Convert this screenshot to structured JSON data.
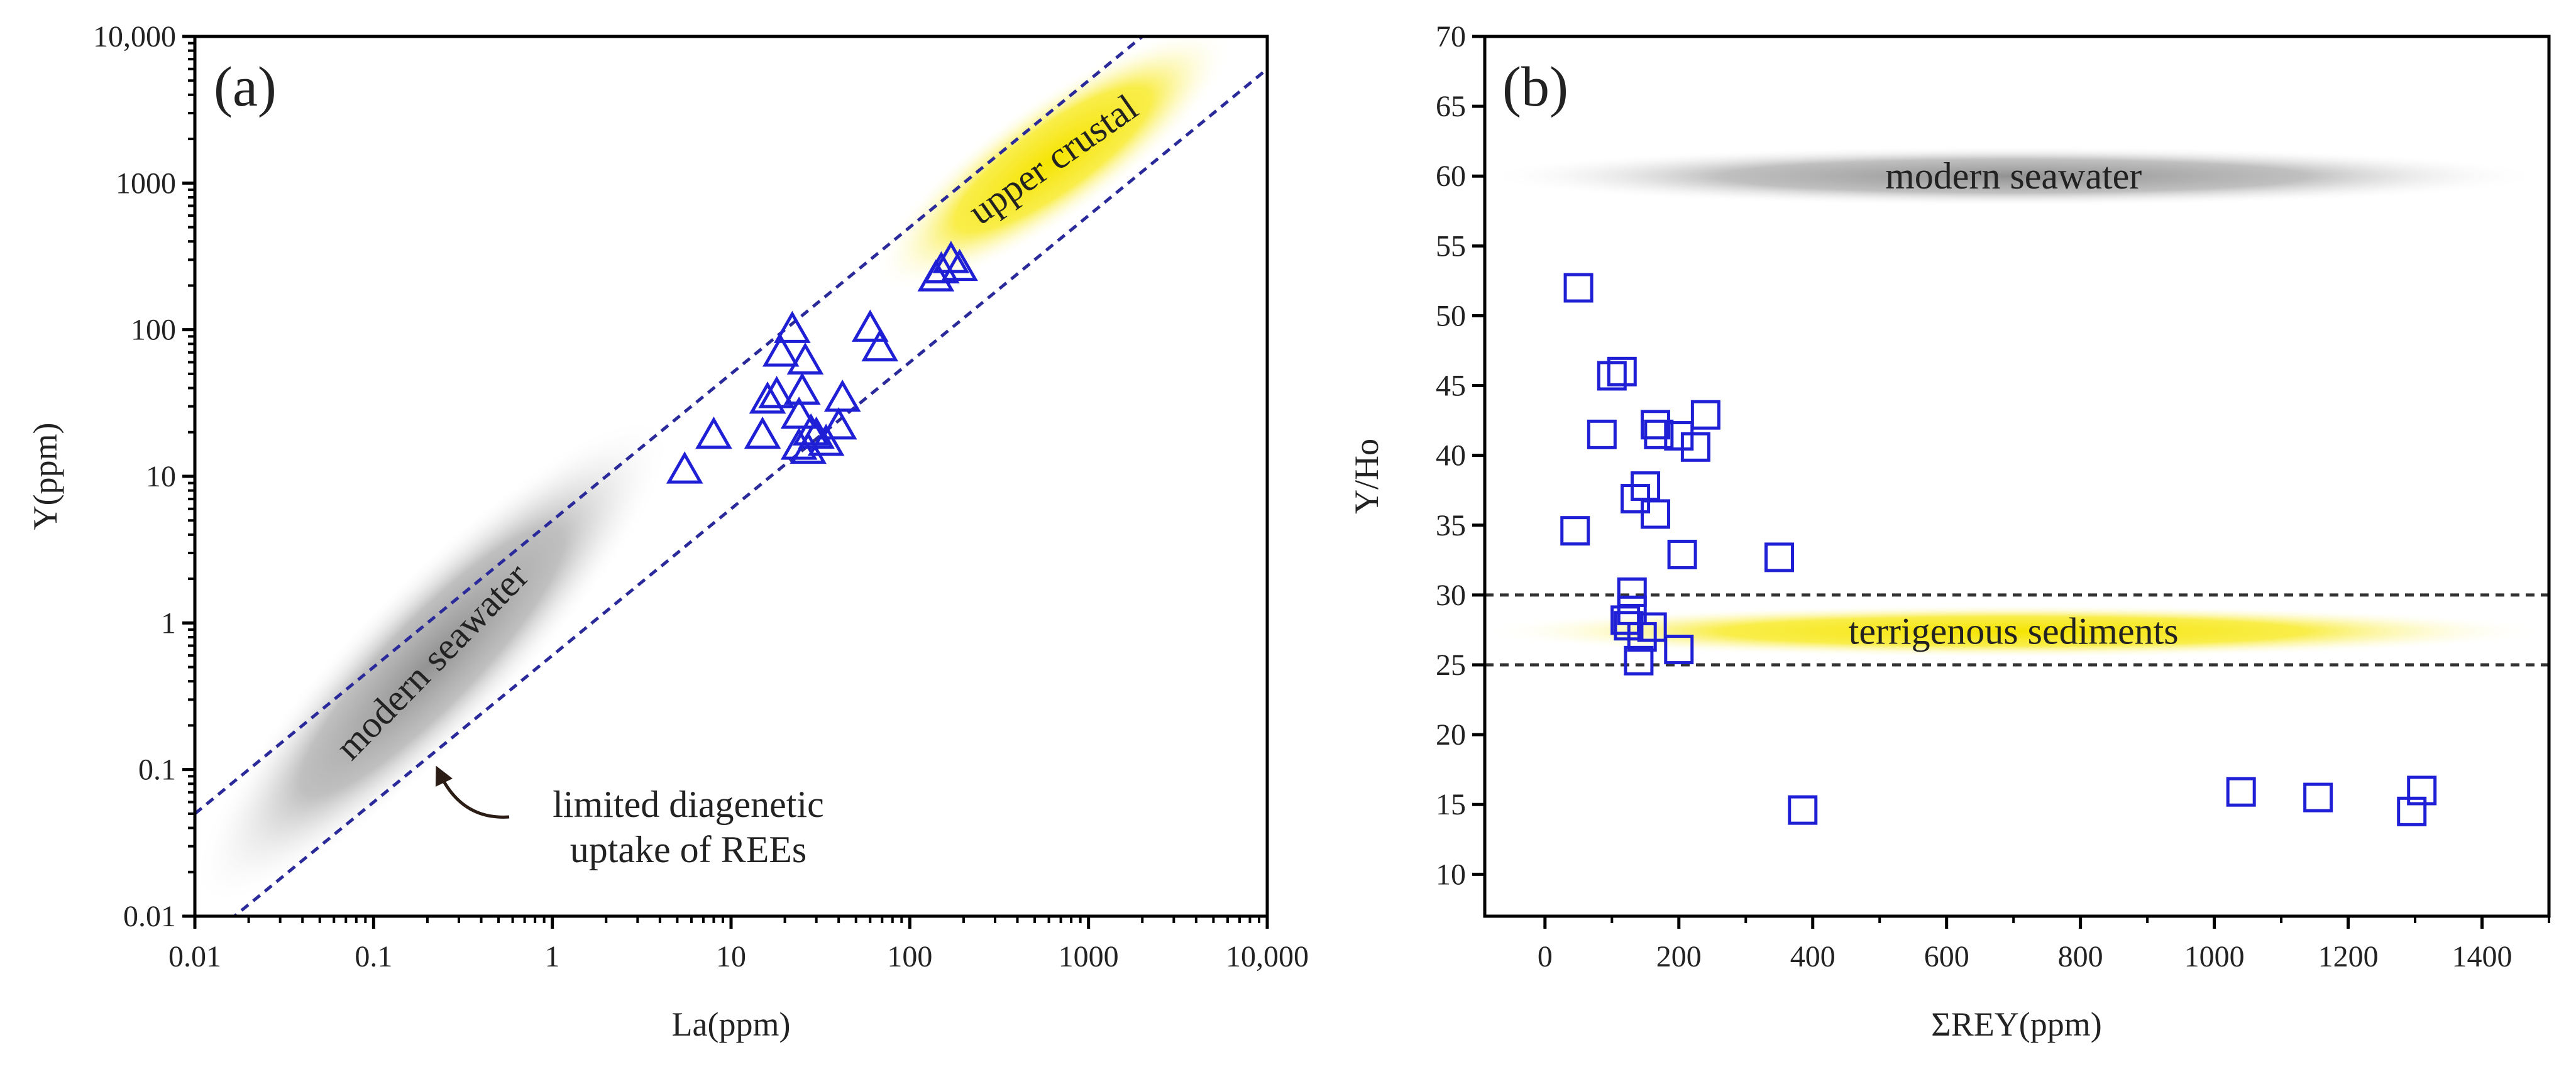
{
  "chart_data": [
    {
      "panel": "(a)",
      "type": "scatter",
      "xscale": "log",
      "yscale": "log",
      "xlabel": "La(ppm)",
      "ylabel": "Y(ppm)",
      "xlim": [
        0.01,
        10000
      ],
      "ylim": [
        0.01,
        10000
      ],
      "xticks": [
        0.01,
        0.1,
        1,
        10,
        100,
        1000,
        10000
      ],
      "xtick_labels": [
        "0.01",
        "0.1",
        "1",
        "10",
        "100",
        "1000",
        "10,000"
      ],
      "yticks": [
        0.01,
        0.1,
        1,
        10,
        100,
        1000,
        10000
      ],
      "ytick_labels": [
        "0.01",
        "0.1",
        "1",
        "10",
        "100",
        "1000",
        "10,000"
      ],
      "marker": "open-triangle",
      "marker_color": "#1f1fd6",
      "series": [
        {
          "name": "samples",
          "points": [
            [
              5.5,
              11
            ],
            [
              8,
              19
            ],
            [
              15,
              19
            ],
            [
              16,
              33
            ],
            [
              18,
              36
            ],
            [
              19,
              69
            ],
            [
              22,
              100
            ],
            [
              24,
              16
            ],
            [
              24,
              26
            ],
            [
              25,
              38
            ],
            [
              26,
              61
            ],
            [
              27,
              15
            ],
            [
              28,
              20
            ],
            [
              30,
              19
            ],
            [
              34,
              17
            ],
            [
              40,
              22
            ],
            [
              42,
              34
            ],
            [
              60,
              102
            ],
            [
              68,
              75
            ],
            [
              140,
              225
            ],
            [
              150,
              255
            ],
            [
              170,
              300
            ],
            [
              190,
              265
            ]
          ]
        }
      ],
      "reference_lines": [
        {
          "style": "dashed",
          "color": "#2a2a9a",
          "from": [
            0.01,
            0.05
          ],
          "to": [
            10000,
            50000
          ]
        },
        {
          "style": "dashed",
          "color": "#2a2a9a",
          "from": [
            0.01,
            0.006
          ],
          "to": [
            10000,
            6000
          ]
        }
      ],
      "regions": [
        {
          "label": "modern seawater",
          "color": "#9c9c9c",
          "from": [
            0.015,
            0.02
          ],
          "to": [
            3,
            15
          ]
        },
        {
          "label": "upper crustal",
          "color": "#f5e500",
          "from": [
            100,
            300
          ],
          "to": [
            4000,
            7000
          ]
        }
      ],
      "annotation": {
        "line1": "limited diagenetic",
        "line2": "uptake of REEs"
      }
    },
    {
      "panel": "(b)",
      "type": "scatter",
      "xlabel": "ΣREY(ppm)",
      "ylabel": "Y/Ho",
      "xlim": [
        -90,
        1500
      ],
      "ylim": [
        7,
        70
      ],
      "xticks": [
        0,
        200,
        400,
        600,
        800,
        1000,
        1200,
        1400
      ],
      "yticks": [
        10,
        15,
        20,
        25,
        30,
        35,
        40,
        45,
        50,
        55,
        60,
        65,
        70
      ],
      "marker": "open-square",
      "marker_color": "#1f1fd6",
      "series": [
        {
          "name": "samples",
          "points": [
            [
              50,
              52
            ],
            [
              45,
              34.6
            ],
            [
              85,
              41.5
            ],
            [
              100,
              45.7
            ],
            [
              115,
              46
            ],
            [
              120,
              28.2
            ],
            [
              125,
              27.8
            ],
            [
              130,
              30.2
            ],
            [
              130,
              28.9
            ],
            [
              135,
              36.9
            ],
            [
              140,
              25.3
            ],
            [
              145,
              27
            ],
            [
              150,
              37.8
            ],
            [
              160,
              27.7
            ],
            [
              165,
              35.8
            ],
            [
              165,
              42.2
            ],
            [
              170,
              41.5
            ],
            [
              200,
              41.4
            ],
            [
              200,
              26.1
            ],
            [
              205,
              32.9
            ],
            [
              225,
              40.6
            ],
            [
              240,
              42.9
            ],
            [
              350,
              32.7
            ],
            [
              385,
              14.6
            ],
            [
              1040,
              15.9
            ],
            [
              1155,
              15.5
            ],
            [
              1295,
              14.5
            ],
            [
              1310,
              16
            ]
          ]
        }
      ],
      "reference_lines": [
        {
          "style": "dashed",
          "color": "#333333",
          "y": 30
        },
        {
          "style": "dashed",
          "color": "#333333",
          "y": 25
        }
      ],
      "regions": [
        {
          "label": "modern seawater",
          "color": "#8a8a8a",
          "center": [
            700,
            60
          ],
          "x_range": [
            -90,
            1500
          ]
        },
        {
          "label": "terrigenous sediments",
          "color": "#f5e500",
          "center": [
            700,
            27.4
          ],
          "x_range": [
            -90,
            1500
          ]
        }
      ]
    }
  ]
}
